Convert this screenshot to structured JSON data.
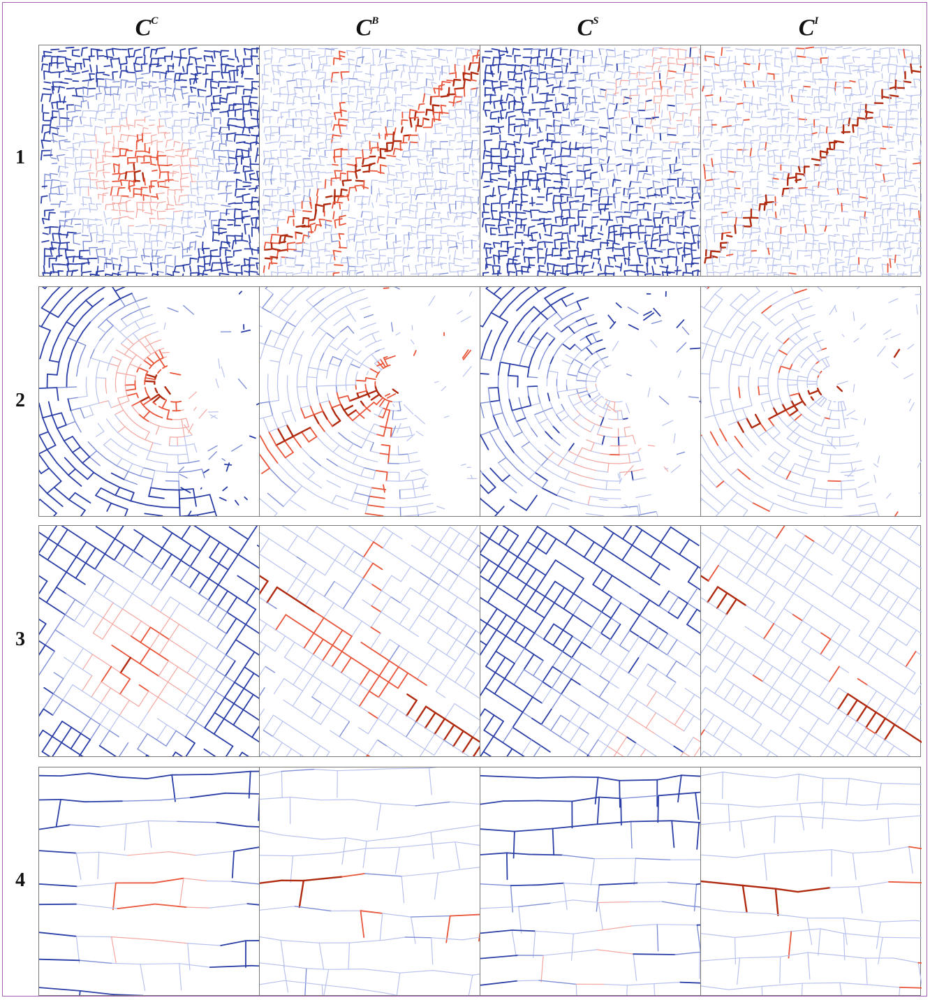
{
  "columns": [
    {
      "symbol": "C",
      "sup": "C"
    },
    {
      "symbol": "C",
      "sup": "B"
    },
    {
      "symbol": "C",
      "sup": "S"
    },
    {
      "symbol": "C",
      "sup": "I"
    }
  ],
  "rows": [
    {
      "label": "1",
      "pattern": "dense-organic"
    },
    {
      "label": "2",
      "pattern": "curved-river"
    },
    {
      "label": "3",
      "pattern": "diagonal-grid"
    },
    {
      "label": "4",
      "pattern": "sparse-streets"
    }
  ],
  "colors": {
    "high": "#b02a10",
    "mid_high": "#e8553a",
    "low_red": "#f4a6a0",
    "low_blue": "#b8c2ee",
    "mid_blue": "#7f8fd6",
    "high_blue": "#2a3ea6",
    "frame": "#a060b0"
  }
}
